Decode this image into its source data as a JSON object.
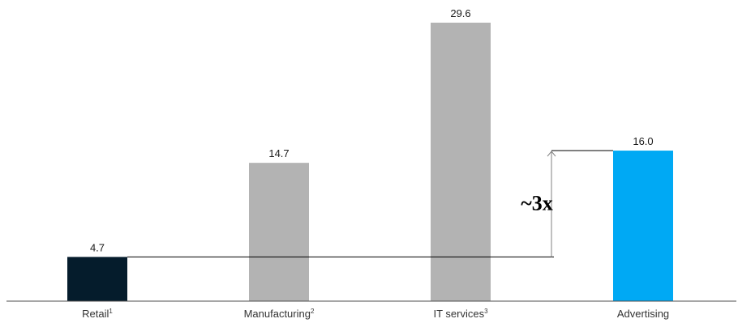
{
  "chart_data": {
    "type": "bar",
    "categories": [
      "Retail",
      "Manufacturing",
      "IT services",
      "Advertising"
    ],
    "footnote_marks": [
      "1",
      "2",
      "3",
      ""
    ],
    "values": [
      4.7,
      14.7,
      29.6,
      16.0
    ],
    "value_labels": [
      "4.7",
      "14.7",
      "29.6",
      "16.0"
    ],
    "ylim": [
      0,
      29.6
    ],
    "colors": [
      "#051c2c",
      "#b3b3b3",
      "#b3b3b3",
      "#00a9f4"
    ],
    "annotation": {
      "text": "~3x",
      "from_category": "Retail",
      "to_category": "Advertising"
    },
    "grid": false,
    "legend": "none"
  }
}
